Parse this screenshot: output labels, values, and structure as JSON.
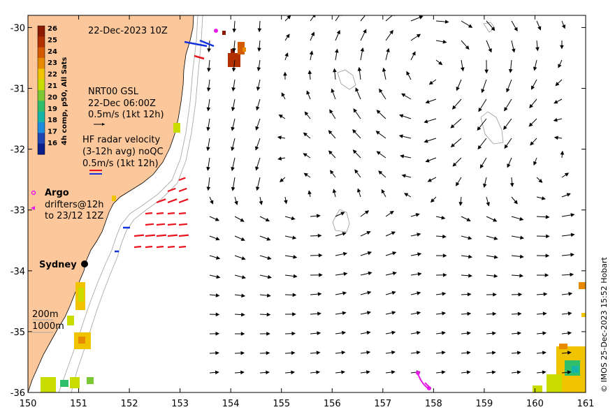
{
  "map": {
    "timestamp": "22-Dec-2023 10Z",
    "x_axis": {
      "min": 150,
      "max": 161,
      "ticks": [
        "150",
        "151",
        "152",
        "153",
        "154",
        "155",
        "156",
        "157",
        "158",
        "159",
        "160",
        "161"
      ]
    },
    "y_axis": {
      "min": -36,
      "max": -29.8,
      "ticks": [
        "-30",
        "-31",
        "-32",
        "-33",
        "-34",
        "-35",
        "-36"
      ]
    },
    "colorbar": {
      "title": "4h comp, p50, All Sats",
      "labels": [
        "26",
        "25",
        "24",
        "23",
        "22",
        "21",
        "20",
        "19",
        "18",
        "17",
        "16"
      ],
      "colors": [
        "#8b1a00",
        "#b23000",
        "#d35a00",
        "#e88a00",
        "#f0c400",
        "#c8dc00",
        "#7cc832",
        "#2fbf6a",
        "#14b4a8",
        "#1e8cdc",
        "#1e46b4",
        "#0a1e8c"
      ]
    },
    "gsl_legend": {
      "line1": "NRT00 GSL",
      "line2": "22-Dec 06:00Z",
      "line3": "0.5m/s (1kt 12h)"
    },
    "hf_legend": {
      "line1": "HF radar velocity",
      "line2": "(3-12h avg) noQC",
      "line3": "0.5m/s (1kt 12h)"
    },
    "argo_legend": {
      "title": "Argo",
      "line1": "drifters@12h",
      "line2": "to 23/12 12Z"
    },
    "city": {
      "name": "Sydney"
    },
    "bathy_legend": {
      "line1": "200m",
      "line2": "1000m"
    },
    "credit": "© IMOS 25-Dec-2023 15:52 Hobart",
    "colors": {
      "land": "#fcc89b",
      "hf_red": "#e8141e",
      "hf_blue": "#1432dc",
      "argo": "#e619e6"
    }
  }
}
